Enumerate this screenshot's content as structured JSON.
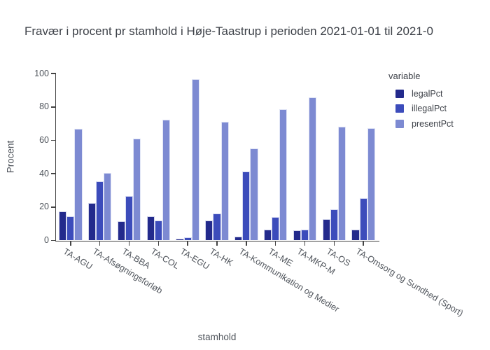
{
  "chart_data": {
    "type": "bar",
    "title": "Fravær i procent pr stamhold i Høje-Taastrup i perioden 2021-01-01 til 2021-0",
    "xlabel": "stamhold",
    "ylabel": "Procent",
    "ylim": [
      0,
      100
    ],
    "yticks": [
      0,
      20,
      40,
      60,
      80,
      100
    ],
    "grid": false,
    "legend_title": "variable",
    "legend_position": "right-top",
    "categories": [
      "TA-AGU",
      "TA-Afsøgningsforløb",
      "TA-BBA",
      "TA-COL",
      "TA-EGU",
      "TA-HK",
      "TA-Kommunikation og Medier",
      "TA-ME",
      "TA-MKP-M",
      "TA-OS",
      "TA-Omsorg og Sundhed (Sport)"
    ],
    "series": [
      {
        "name": "legalPct",
        "color": "#232a8c",
        "values": [
          17.5,
          22.5,
          11.5,
          14.5,
          1,
          12,
          2.5,
          6.5,
          6,
          13,
          6.5
        ]
      },
      {
        "name": "illegalPct",
        "color": "#3c4cbb",
        "values": [
          14.5,
          35.5,
          26.5,
          12,
          2,
          16,
          41.5,
          14,
          6.5,
          18.5,
          25.5
        ]
      },
      {
        "name": "presentPct",
        "color": "#7d8ad2",
        "values": [
          67,
          40.5,
          61,
          72.5,
          96.5,
          71,
          55,
          78.5,
          86,
          68,
          67.5
        ]
      }
    ],
    "colors": {
      "axis_line": "#444444",
      "tick_text": "#50555c",
      "title_text": "#3d4148"
    }
  }
}
